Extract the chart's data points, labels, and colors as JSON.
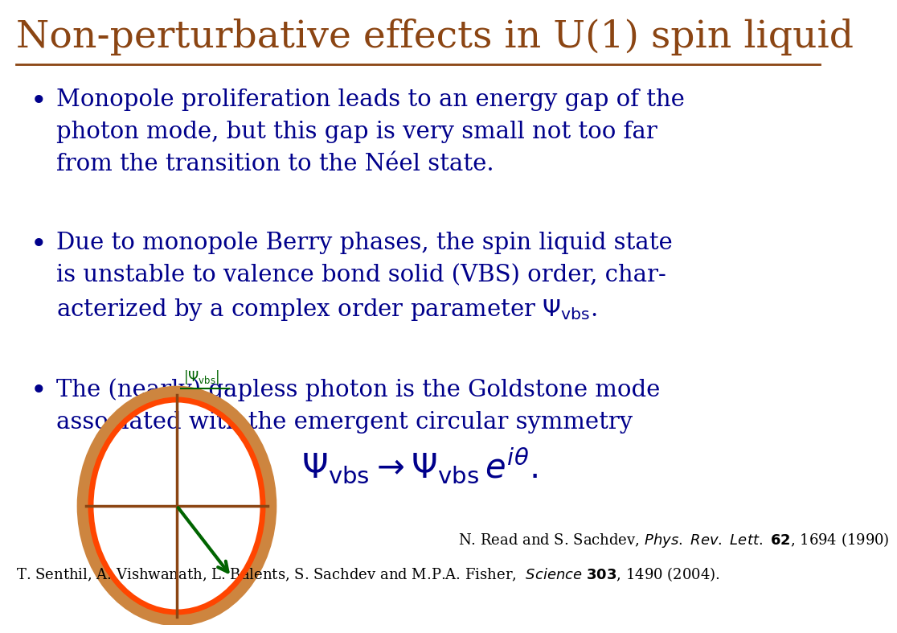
{
  "title": "Non-perturbative effects in U(1) spin liquid",
  "title_color": "#8B4513",
  "title_fontsize": 34,
  "bullet_color": "#00008B",
  "bullet_fontsize": 21,
  "bg_color": "#FFFFFF",
  "circle_outer_color": "#CD853F",
  "circle_inner_color": "#FF4500",
  "cross_color": "#8B4513",
  "arrow_color": "#006400",
  "psi_label_color": "#006400",
  "ref_color": "#000000",
  "ref_fontsize": 13,
  "formula_fontsize": 30,
  "psi_label_fontsize": 12
}
